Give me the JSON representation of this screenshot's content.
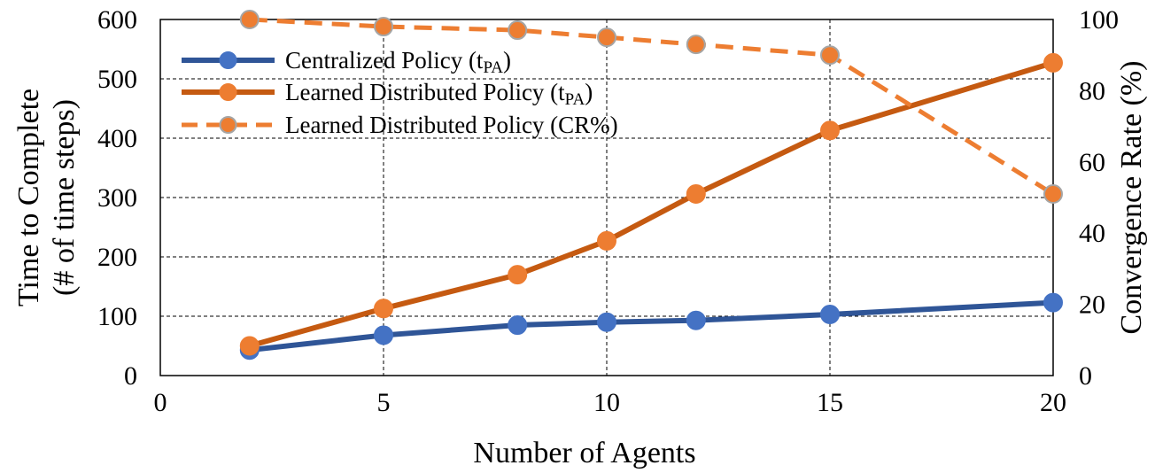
{
  "chart_data": {
    "type": "line",
    "x_label": "Number of Agents",
    "y_label_left": [
      "Time to Complete",
      "(# of time steps)"
    ],
    "y_label_right": "Convergence Rate (%)",
    "xlim": [
      0,
      20
    ],
    "ylim_left": [
      0,
      600
    ],
    "ylim_right": [
      0,
      100
    ],
    "x_ticks": [
      0,
      5,
      10,
      15,
      20
    ],
    "y_ticks_left": [
      0,
      100,
      200,
      300,
      400,
      500,
      600
    ],
    "y_ticks_right": [
      0,
      20,
      40,
      60,
      80,
      100
    ],
    "grid": true,
    "legend_position": "top-left",
    "series": [
      {
        "name": "Centralized Policy (t",
        "subscript": "PA",
        "suffix": ")",
        "axis": "left",
        "style": "solid",
        "line_color": "#2f5597",
        "marker_color": "#4472c4",
        "marker_edge": "#4472c4",
        "x": [
          2,
          5,
          8,
          10,
          12,
          15,
          20
        ],
        "y": [
          43,
          68,
          85,
          90,
          93,
          103,
          123
        ]
      },
      {
        "name": "Learned Distributed Policy (t",
        "subscript": "PA",
        "suffix": ")",
        "axis": "left",
        "style": "solid",
        "line_color": "#c55a11",
        "marker_color": "#ed7d31",
        "marker_edge": "#ed7d31",
        "x": [
          2,
          5,
          8,
          10,
          12,
          15,
          20
        ],
        "y": [
          50,
          113,
          170,
          227,
          306,
          413,
          527
        ]
      },
      {
        "name": "Learned Distributed Policy (CR%)",
        "subscript": "",
        "suffix": "",
        "axis": "right",
        "style": "dashed",
        "line_color": "#ed7d31",
        "marker_color": "#ed7d31",
        "marker_edge": "#a5a5a5",
        "x": [
          2,
          5,
          8,
          10,
          12,
          15,
          20
        ],
        "y": [
          100,
          98,
          97,
          95,
          93,
          90,
          51
        ]
      }
    ]
  }
}
